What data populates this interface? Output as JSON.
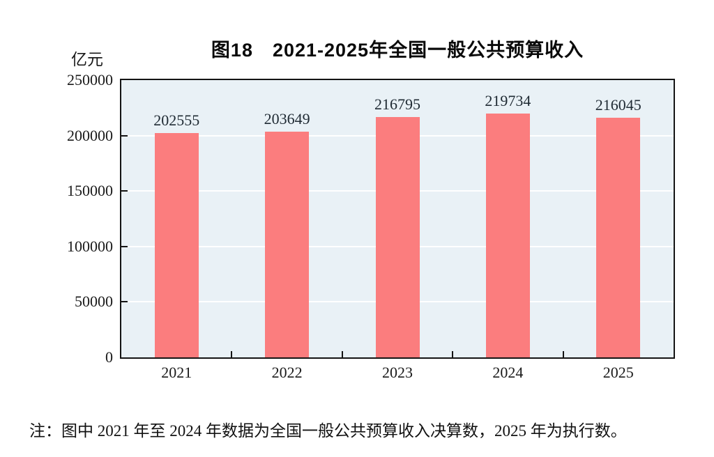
{
  "figure": {
    "unit_label": "亿元",
    "note": "注：图中 2021 年至 2024 年数据为全国一般公共预算收入决算数，2025 年为执行数。"
  },
  "chart_data": {
    "type": "bar",
    "title": "图18　2021-2025年全国一般公共预算收入",
    "categories": [
      "2021",
      "2022",
      "2023",
      "2024",
      "2025"
    ],
    "values": [
      202555,
      203649,
      216795,
      219734,
      216045
    ],
    "ylabel": "亿元",
    "xlabel": "",
    "ylim": [
      0,
      250000
    ],
    "yticks": [
      0,
      50000,
      100000,
      150000,
      200000,
      250000
    ],
    "grid": true,
    "legend_position": "none",
    "data_labels": true,
    "colors": {
      "bar_fill": "#fb7d7e",
      "plot_background": "#e9f1f6",
      "frame": "#141414",
      "gridline": "#ffffff",
      "text": "#1a1a1a"
    }
  }
}
